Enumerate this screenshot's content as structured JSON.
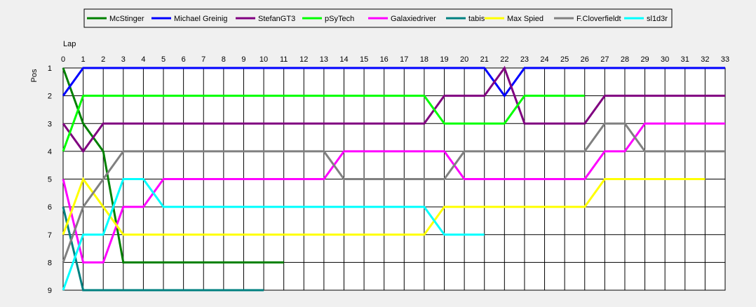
{
  "chart_data": {
    "type": "line",
    "xlabel": "Lap",
    "ylabel": "Pos",
    "xlim": [
      0,
      33
    ],
    "ylim": [
      1,
      9
    ],
    "y_inverted": true,
    "grid": true,
    "legend_position": "top-center",
    "x_ticks": [
      0,
      1,
      2,
      3,
      4,
      5,
      6,
      7,
      8,
      9,
      10,
      11,
      12,
      13,
      14,
      15,
      16,
      17,
      18,
      19,
      20,
      21,
      22,
      23,
      24,
      25,
      26,
      27,
      28,
      29,
      30,
      31,
      32,
      33
    ],
    "y_ticks": [
      1,
      2,
      3,
      4,
      5,
      6,
      7,
      8,
      9
    ],
    "series": [
      {
        "name": "McStinger",
        "color": "#008000",
        "values": [
          1,
          3,
          4,
          8,
          8,
          8,
          8,
          8,
          8,
          8,
          8,
          8
        ]
      },
      {
        "name": "Michael Greinig",
        "color": "#0000ff",
        "values": [
          2,
          1,
          1,
          1,
          1,
          1,
          1,
          1,
          1,
          1,
          1,
          1,
          1,
          1,
          1,
          1,
          1,
          1,
          1,
          1,
          1,
          1,
          2,
          1,
          1,
          1,
          1,
          1,
          1,
          1,
          1,
          1,
          1,
          1
        ]
      },
      {
        "name": "StefanGT3",
        "color": "#800080",
        "values": [
          3,
          4,
          3,
          3,
          3,
          3,
          3,
          3,
          3,
          3,
          3,
          3,
          3,
          3,
          3,
          3,
          3,
          3,
          3,
          2,
          2,
          2,
          1,
          3,
          3,
          3,
          3,
          2,
          2,
          2,
          2,
          2,
          2,
          2
        ]
      },
      {
        "name": "pSyTech",
        "color": "#00ff00",
        "values": [
          4,
          2,
          2,
          2,
          2,
          2,
          2,
          2,
          2,
          2,
          2,
          2,
          2,
          2,
          2,
          2,
          2,
          2,
          2,
          3,
          3,
          3,
          3,
          2,
          2,
          2,
          2
        ]
      },
      {
        "name": "Galaxiedriver",
        "color": "#ff00ff",
        "values": [
          5,
          8,
          8,
          6,
          6,
          5,
          5,
          5,
          5,
          5,
          5,
          5,
          5,
          5,
          4,
          4,
          4,
          4,
          4,
          4,
          5,
          5,
          5,
          5,
          5,
          5,
          5,
          4,
          4,
          3,
          3,
          3,
          3,
          3
        ]
      },
      {
        "name": "tabis",
        "color": "#008080",
        "values": [
          6,
          9,
          9,
          9,
          9,
          9,
          9,
          9,
          9,
          9,
          9
        ]
      },
      {
        "name": "Max Spied",
        "color": "#ffff00",
        "values": [
          7,
          5,
          6,
          7,
          7,
          7,
          7,
          7,
          7,
          7,
          7,
          7,
          7,
          7,
          7,
          7,
          7,
          7,
          7,
          6,
          6,
          6,
          6,
          6,
          6,
          6,
          6,
          5,
          5,
          5,
          5,
          5,
          5
        ]
      },
      {
        "name": "F.Cloverfieldt",
        "color": "#808080",
        "values": [
          8,
          6,
          5,
          4,
          4,
          4,
          4,
          4,
          4,
          4,
          4,
          4,
          4,
          4,
          5,
          5,
          5,
          5,
          5,
          5,
          4,
          4,
          4,
          4,
          4,
          4,
          4,
          3,
          3,
          4,
          4,
          4,
          4,
          4
        ]
      },
      {
        "name": "sl1d3r",
        "color": "#00ffff",
        "values": [
          9,
          7,
          7,
          5,
          5,
          6,
          6,
          6,
          6,
          6,
          6,
          6,
          6,
          6,
          6,
          6,
          6,
          6,
          6,
          7,
          7,
          7
        ]
      }
    ]
  }
}
